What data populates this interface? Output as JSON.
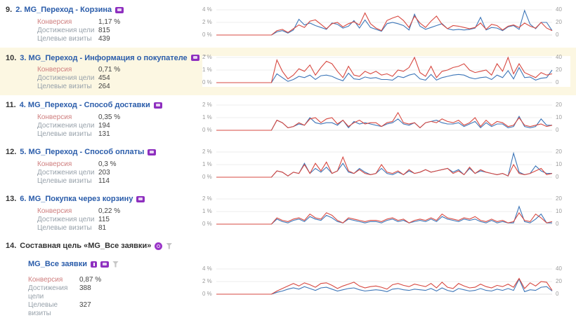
{
  "stats_labels": {
    "conversion": "Конверсия",
    "reaches": "Достижения цели",
    "visits": "Целевые визиты"
  },
  "colors": {
    "red_line": "#d74840",
    "blue_line": "#3d76b8",
    "grid": "#ececec",
    "baseline": "#e0e0e0",
    "title_blue": "#2a5caa",
    "highlight_row": "#fcf7e2",
    "badge_purple": "#8e2fbf",
    "icon_gray": "#c6c6c6"
  },
  "rows": [
    {
      "index": "9.",
      "title": "2. MG_Переход - Корзина",
      "icons": [
        "goal-badge"
      ],
      "highlight": false,
      "stats": {
        "conversion": "1,17 %",
        "reaches": "815",
        "visits": "439"
      },
      "chart": 0
    },
    {
      "index": "10.",
      "title": "3. MG_Переход - Информация о покупателе",
      "icons": [
        "goal-badge",
        "pencil"
      ],
      "highlight": true,
      "stats": {
        "conversion": "0,71 %",
        "reaches": "454",
        "visits": "264"
      },
      "chart": 1
    },
    {
      "index": "11.",
      "title": "4. MG_Переход - Способ доставки",
      "icons": [
        "goal-badge"
      ],
      "highlight": false,
      "stats": {
        "conversion": "0,35 %",
        "reaches": "194",
        "visits": "131"
      },
      "chart": 2
    },
    {
      "index": "12.",
      "title": "5. MG_Переход - Способ оплаты",
      "icons": [
        "goal-badge"
      ],
      "highlight": false,
      "stats": {
        "conversion": "0,3 %",
        "reaches": "203",
        "visits": "114"
      },
      "chart": 3
    },
    {
      "index": "13.",
      "title": "6. MG_Покупка через корзину",
      "icons": [
        "goal-badge"
      ],
      "highlight": false,
      "stats": {
        "conversion": "0,22 %",
        "reaches": "115",
        "visits": "81"
      },
      "chart": 4
    },
    {
      "index": "14.",
      "title": "Составная цель «MG_Все заявки»",
      "icons": [
        "composite",
        "funnel"
      ],
      "highlight": false,
      "composite": true,
      "sub": {
        "title": "MG_Все заявки",
        "icons": [
          "step-badge",
          "goal-badge",
          "funnel"
        ],
        "stats": {
          "conversion": "0,87 %",
          "reaches": "388",
          "visits": "327"
        },
        "chart": 5
      }
    }
  ],
  "chart_data": [
    {
      "type": "line",
      "title": "2. MG_Переход - Корзина — динамика",
      "left_axis": {
        "ticks": [
          "4 %",
          "2 %",
          "0 %"
        ],
        "max": 4
      },
      "right_axis": {
        "ticks": [
          "40",
          "20",
          "0"
        ],
        "max": 40
      },
      "series": [
        {
          "name": "red",
          "axis": "left",
          "values": [
            0,
            0,
            0,
            0,
            0,
            0,
            0,
            0,
            0,
            0,
            0,
            0.7,
            0.9,
            0.4,
            1.0,
            1.6,
            1.2,
            2.2,
            2.4,
            1.7,
            1.0,
            1.8,
            2.0,
            1.3,
            1.8,
            2.1,
            1.6,
            3.5,
            1.8,
            1.1,
            0.7,
            2.3,
            2.7,
            3.0,
            2.3,
            1.2,
            3.0,
            1.9,
            1.2,
            2.2,
            3.0,
            1.7,
            1.0,
            1.5,
            1.4,
            1.2,
            1.0,
            1.2,
            1.9,
            0.9,
            1.7,
            1.5,
            0.8,
            1.4,
            1.6,
            1.2,
            1.9,
            1.4,
            1.1,
            2.0,
            1.1,
            0.7
          ]
        },
        {
          "name": "blue",
          "axis": "right",
          "values": [
            0,
            0,
            0,
            0,
            0,
            0,
            0,
            0,
            0,
            0,
            0,
            5,
            7,
            3,
            8,
            25,
            16,
            19,
            15,
            12,
            9,
            19,
            17,
            11,
            14,
            23,
            11,
            24,
            12,
            9,
            6,
            18,
            20,
            18,
            15,
            8,
            33,
            14,
            9,
            12,
            15,
            18,
            10,
            8,
            9,
            8,
            9,
            11,
            28,
            8,
            12,
            11,
            7,
            13,
            15,
            9,
            39,
            17,
            10,
            20,
            20,
            7
          ]
        }
      ]
    },
    {
      "type": "line",
      "title": "3. MG_Переход - Информация о покупателе — динамика",
      "left_axis": {
        "ticks": [
          "2 %",
          "1 %",
          "0 %"
        ],
        "max": 2
      },
      "right_axis": {
        "ticks": [
          "40",
          "20",
          "0"
        ],
        "max": 40
      },
      "series": [
        {
          "name": "red",
          "axis": "left",
          "values": [
            0,
            0,
            0,
            0,
            0,
            0,
            0,
            0,
            0,
            0,
            0,
            1.8,
            0.9,
            0.3,
            0.6,
            1.1,
            0.9,
            1.4,
            0.6,
            1.2,
            1.7,
            1.5,
            0.9,
            0.4,
            1.3,
            0.6,
            0.5,
            0.9,
            0.7,
            0.9,
            0.6,
            0.7,
            0.5,
            1.0,
            0.9,
            1.2,
            2.0,
            0.8,
            0.5,
            1.3,
            0.4,
            0.9,
            1.0,
            1.2,
            1.3,
            1.5,
            1.0,
            0.8,
            0.9,
            1.0,
            0.6,
            1.5,
            0.9,
            2.0,
            0.7,
            1.5,
            0.8,
            0.6,
            0.4,
            0.8,
            0.6,
            0.7
          ]
        },
        {
          "name": "blue",
          "axis": "right",
          "values": [
            0,
            0,
            0,
            0,
            0,
            0,
            0,
            0,
            0,
            0,
            0,
            14,
            8,
            2,
            5,
            10,
            8,
            12,
            5,
            11,
            12,
            10,
            6,
            3,
            15,
            6,
            5,
            9,
            7,
            8,
            5,
            5,
            4,
            10,
            8,
            12,
            14,
            6,
            4,
            13,
            4,
            8,
            10,
            12,
            13,
            12,
            8,
            6,
            8,
            9,
            5,
            12,
            8,
            19,
            6,
            24,
            8,
            9,
            4,
            7,
            8,
            20
          ]
        }
      ]
    },
    {
      "type": "line",
      "title": "4. MG_Переход - Способ доставки — динамика",
      "left_axis": {
        "ticks": [
          "2 %",
          "1 %",
          "0 %"
        ],
        "max": 2
      },
      "right_axis": {
        "ticks": [
          "20",
          "10",
          "0"
        ],
        "max": 20
      },
      "series": [
        {
          "name": "red",
          "axis": "left",
          "values": [
            0,
            0,
            0,
            0,
            0,
            0,
            0,
            0,
            0,
            0,
            0,
            0.8,
            0.6,
            0.2,
            0.3,
            0.6,
            0.4,
            0.9,
            1.0,
            0.6,
            0.9,
            1.0,
            0.5,
            0.8,
            0.3,
            0.6,
            0.8,
            0.5,
            0.6,
            0.6,
            0.3,
            0.6,
            0.7,
            1.4,
            0.6,
            0.5,
            0.6,
            0.2,
            0.6,
            0.7,
            0.6,
            0.9,
            0.7,
            0.6,
            0.8,
            0.4,
            0.6,
            1.0,
            0.3,
            0.8,
            0.4,
            0.7,
            0.6,
            0.3,
            0.4,
            1.0,
            0.4,
            0.3,
            0.4,
            0.5,
            0.3,
            0.4
          ]
        },
        {
          "name": "blue",
          "axis": "right",
          "values": [
            0,
            0,
            0,
            0,
            0,
            0,
            0,
            0,
            0,
            0,
            0,
            8,
            6,
            2,
            3,
            5,
            4,
            10,
            6,
            5,
            6,
            6,
            4,
            8,
            2,
            7,
            5,
            6,
            5,
            4,
            3,
            5,
            6,
            9,
            5,
            4,
            6,
            2,
            6,
            7,
            8,
            6,
            5,
            5,
            6,
            3,
            5,
            7,
            2,
            6,
            3,
            5,
            5,
            2,
            3,
            11,
            3,
            2,
            3,
            9,
            4,
            4
          ]
        }
      ]
    },
    {
      "type": "line",
      "title": "5. MG_Переход - Способ оплаты — динамика",
      "left_axis": {
        "ticks": [
          "2 %",
          "1 %",
          "0 %"
        ],
        "max": 2
      },
      "right_axis": {
        "ticks": [
          "20",
          "10",
          "0"
        ],
        "max": 20
      },
      "series": [
        {
          "name": "red",
          "axis": "left",
          "values": [
            0,
            0,
            0,
            0,
            0,
            0,
            0,
            0,
            0,
            0,
            0,
            0.5,
            0.4,
            0.1,
            0.4,
            0.3,
            1.0,
            0.3,
            1.1,
            0.5,
            1.2,
            0.3,
            0.5,
            1.6,
            0.5,
            0.3,
            0.6,
            0.3,
            0.2,
            0.3,
            1.0,
            0.4,
            0.3,
            0.5,
            0.2,
            0.6,
            0.3,
            0.4,
            0.6,
            0.4,
            0.5,
            0.6,
            0.7,
            0.3,
            0.5,
            0.2,
            0.8,
            0.3,
            0.6,
            0.4,
            0.3,
            0.2,
            0.3,
            0.1,
            1.0,
            0.3,
            0.2,
            0.3,
            0.5,
            0.7,
            0.2,
            0.3
          ]
        },
        {
          "name": "blue",
          "axis": "right",
          "values": [
            0,
            0,
            0,
            0,
            0,
            0,
            0,
            0,
            0,
            0,
            0,
            5,
            4,
            1,
            4,
            3,
            11,
            3,
            7,
            4,
            8,
            3,
            5,
            11,
            4,
            3,
            7,
            4,
            2,
            3,
            7,
            3,
            2,
            4,
            2,
            5,
            3,
            4,
            6,
            4,
            5,
            6,
            7,
            4,
            6,
            2,
            7,
            3,
            5,
            4,
            3,
            2,
            3,
            1,
            19,
            4,
            2,
            3,
            9,
            5,
            3,
            3
          ]
        }
      ]
    },
    {
      "type": "line",
      "title": "6. MG_Покупка через корзину — динамика",
      "left_axis": {
        "ticks": [
          "2 %",
          "1 %",
          "0 %"
        ],
        "max": 2
      },
      "right_axis": {
        "ticks": [
          "20",
          "10",
          "0"
        ],
        "max": 20
      },
      "series": [
        {
          "name": "red",
          "axis": "left",
          "values": [
            0,
            0,
            0,
            0,
            0,
            0,
            0,
            0,
            0,
            0,
            0,
            0.5,
            0.3,
            0.2,
            0.4,
            0.5,
            0.3,
            0.8,
            0.5,
            0.4,
            0.9,
            0.7,
            0.3,
            0.1,
            0.5,
            0.4,
            0.3,
            0.2,
            0.3,
            0.3,
            0.2,
            0.4,
            0.5,
            0.3,
            0.4,
            0.1,
            0.3,
            0.4,
            0.3,
            0.5,
            0.3,
            0.8,
            0.5,
            0.4,
            0.3,
            0.5,
            0.4,
            0.6,
            0.3,
            0.2,
            0.4,
            0.2,
            0.3,
            0.1,
            0.2,
            0.9,
            0.3,
            0.2,
            0.8,
            0.5,
            0.1,
            0.2
          ]
        },
        {
          "name": "blue",
          "axis": "right",
          "values": [
            0,
            0,
            0,
            0,
            0,
            0,
            0,
            0,
            0,
            0,
            0,
            4,
            2,
            1,
            3,
            4,
            2,
            6,
            4,
            3,
            7,
            5,
            2,
            1,
            4,
            3,
            2,
            1,
            2,
            2,
            1,
            3,
            4,
            2,
            3,
            1,
            2,
            3,
            2,
            4,
            2,
            6,
            4,
            3,
            2,
            4,
            3,
            4,
            2,
            1,
            3,
            1,
            2,
            1,
            1,
            14,
            2,
            1,
            4,
            8,
            1,
            1
          ]
        }
      ]
    },
    {
      "type": "line",
      "title": "Составная цель «MG_Все заявки» — динамика",
      "left_axis": {
        "ticks": [
          "4 %",
          "2 %",
          "0 %"
        ],
        "max": 4
      },
      "right_axis": {
        "ticks": [
          "40",
          "20",
          "0"
        ],
        "max": 40
      },
      "series": [
        {
          "name": "red",
          "axis": "left",
          "values": [
            0,
            0,
            0,
            0,
            0,
            0,
            0,
            0,
            0,
            0,
            0,
            0.5,
            0.9,
            1.3,
            1.7,
            1.3,
            1.8,
            1.5,
            1.1,
            1.7,
            1.8,
            1.4,
            0.9,
            1.3,
            1.6,
            1.9,
            1.3,
            1.0,
            1.2,
            1.3,
            1.1,
            0.8,
            1.5,
            1.7,
            1.4,
            1.2,
            1.6,
            1.4,
            1.2,
            1.7,
            1.0,
            1.9,
            1.1,
            0.9,
            1.7,
            1.3,
            1.0,
            1.1,
            1.6,
            1.2,
            1.0,
            1.4,
            1.2,
            1.6,
            1.1,
            2.5,
            0.9,
            1.8,
            1.3,
            2.0,
            1.9,
            0.6
          ]
        },
        {
          "name": "blue",
          "axis": "right",
          "values": [
            0,
            0,
            0,
            0,
            0,
            0,
            0,
            0,
            0,
            0,
            0,
            3,
            5,
            8,
            10,
            8,
            12,
            9,
            6,
            10,
            11,
            8,
            5,
            7,
            9,
            10,
            7,
            5,
            6,
            7,
            6,
            4,
            8,
            9,
            7,
            6,
            8,
            7,
            6,
            9,
            5,
            10,
            6,
            4,
            9,
            7,
            5,
            6,
            9,
            6,
            5,
            8,
            6,
            9,
            6,
            24,
            4,
            7,
            6,
            11,
            12,
            5
          ]
        }
      ]
    }
  ]
}
